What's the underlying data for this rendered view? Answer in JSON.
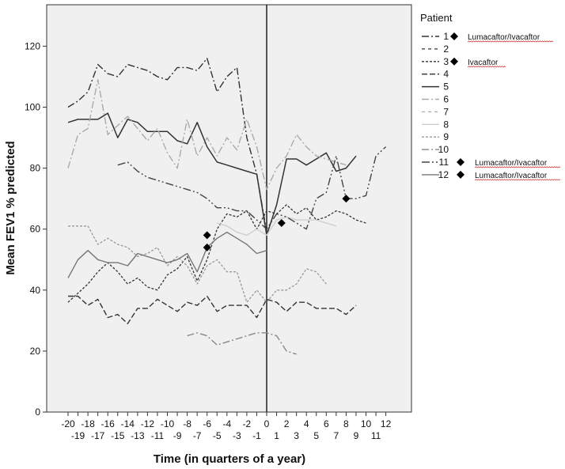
{
  "chart_data": {
    "type": "line",
    "title": "",
    "xlabel": "Time (in quarters of a year)",
    "ylabel": "Mean FEV1 % predicted",
    "xlim": [
      -21,
      13
    ],
    "ylim": [
      0,
      135
    ],
    "yticks": [
      0,
      20,
      40,
      60,
      80,
      100,
      120
    ],
    "xticks_upper": [
      -20,
      -18,
      -16,
      -14,
      -12,
      -10,
      -8,
      -6,
      -4,
      -2,
      0,
      2,
      4,
      6,
      8,
      10,
      12
    ],
    "xticks_lower": [
      -19,
      -17,
      -15,
      -13,
      -11,
      -9,
      -7,
      -5,
      -3,
      -1,
      1,
      3,
      5,
      7,
      9,
      11
    ],
    "reference_line_x": 0,
    "legend_title": "Patient",
    "annotations": [
      {
        "x": -6,
        "y": 58,
        "label": "diamond"
      },
      {
        "x": -6,
        "y": 54,
        "label": "diamond"
      },
      {
        "x": 1.5,
        "y": 62,
        "label": "diamond"
      },
      {
        "x": 8,
        "y": 70,
        "label": "diamond"
      }
    ],
    "series": [
      {
        "name": "1",
        "note": "Lumacaftor/Ivacaftor",
        "marker": true,
        "color": "#333333",
        "dash": "9,3,2,3",
        "width": 1.4,
        "x": [
          -20,
          -19,
          -18,
          -17,
          -16,
          -15,
          -14,
          -13,
          -12,
          -11,
          -10,
          -9,
          -8,
          -7,
          -6,
          -5,
          -4,
          -3,
          -2,
          -1,
          0
        ],
        "y": [
          100,
          102,
          105,
          114,
          111,
          110,
          114,
          113,
          112,
          110,
          109,
          113,
          113,
          112,
          116,
          105,
          110,
          113,
          90,
          78,
          59
        ]
      },
      {
        "name": "2",
        "note": "",
        "marker": false,
        "color": "#333333",
        "dash": "4,4",
        "width": 1.2,
        "x": [],
        "y": []
      },
      {
        "name": "3",
        "note": "Ivacaftor",
        "marker": true,
        "color": "#333333",
        "dash": "3,2",
        "width": 1.3,
        "x": [
          -20,
          -19,
          -18,
          -17,
          -16,
          -15,
          -14,
          -13,
          -12,
          -11,
          -10,
          -9,
          -8,
          -7,
          -6,
          -5,
          -4,
          -3,
          -2,
          -1,
          0,
          1,
          2,
          3,
          4,
          5,
          6,
          7,
          8,
          9,
          10
        ],
        "y": [
          36,
          39,
          42,
          46,
          49,
          46,
          42,
          44,
          41,
          40,
          45,
          47,
          51,
          43,
          50,
          60,
          65,
          64,
          66,
          60,
          66,
          65,
          68,
          65,
          67,
          63,
          64,
          66,
          65,
          63,
          62
        ]
      },
      {
        "name": "4",
        "note": "",
        "marker": false,
        "color": "#333333",
        "dash": "7,3",
        "width": 1.4,
        "x": [
          -20,
          -19,
          -18,
          -17,
          -16,
          -15,
          -14,
          -13,
          -12,
          -11,
          -10,
          -9,
          -8,
          -7,
          -6,
          -5,
          -4,
          -3,
          -2,
          -1,
          0,
          1,
          2,
          3,
          4,
          5,
          6,
          7,
          8,
          9
        ],
        "y": [
          38,
          38,
          35,
          37,
          31,
          32,
          29,
          34,
          34,
          37,
          35,
          33,
          36,
          35,
          38,
          33,
          35,
          35,
          35,
          31,
          37,
          36,
          33,
          36,
          36,
          34,
          34,
          34,
          32,
          35
        ]
      },
      {
        "name": "5",
        "note": "",
        "marker": false,
        "color": "#333333",
        "dash": "",
        "width": 1.5,
        "x": [
          -20,
          -19,
          -18,
          -17,
          -16,
          -15,
          -14,
          -13,
          -12,
          -11,
          -10,
          -9,
          -8,
          -7,
          -6,
          -5,
          -4,
          -3,
          -2,
          -1,
          0,
          1,
          2,
          3,
          4,
          5,
          6,
          7,
          8,
          9
        ],
        "y": [
          95,
          96,
          96,
          96,
          98,
          90,
          96,
          95,
          92,
          92,
          92,
          89,
          88,
          95,
          87,
          82,
          81,
          80,
          79,
          78,
          58,
          68,
          83,
          83,
          81,
          83,
          85,
          79,
          80,
          84
        ]
      },
      {
        "name": "6",
        "note": "",
        "marker": false,
        "color": "#aaaaaa",
        "dash": "9,3,2,3",
        "width": 1.4,
        "x": [
          -20,
          -19,
          -18,
          -17,
          -16,
          -15,
          -14,
          -13,
          -12,
          -11,
          -10,
          -9,
          -8,
          -7,
          -6,
          -5,
          -4,
          -3,
          -2,
          -1,
          0,
          1,
          2,
          3,
          4,
          5,
          6,
          7,
          8
        ],
        "y": [
          80,
          91,
          93,
          109,
          91,
          94,
          97,
          93,
          89,
          93,
          85,
          80,
          96,
          84,
          90,
          84,
          90,
          86,
          96,
          87,
          73,
          80,
          84,
          91,
          87,
          84,
          83,
          82,
          81
        ]
      },
      {
        "name": "7",
        "note": "",
        "marker": false,
        "color": "#aaaaaa",
        "dash": "4,4",
        "width": 1.2,
        "x": [],
        "y": []
      },
      {
        "name": "8",
        "note": "",
        "marker": false,
        "color": "#cfcfcf",
        "dash": "",
        "width": 1.4,
        "x": [
          -5,
          -4,
          -3,
          -2,
          -1,
          0,
          1,
          2,
          3,
          4,
          5,
          6,
          7
        ],
        "y": [
          62,
          61,
          59,
          58,
          60,
          58,
          63,
          64,
          63,
          63,
          63,
          62,
          61
        ]
      },
      {
        "name": "9",
        "note": "",
        "marker": false,
        "color": "#999999",
        "dash": "3,2",
        "width": 1.3,
        "x": [
          -20,
          -19,
          -18,
          -17,
          -16,
          -15,
          -14,
          -13,
          -12,
          -11,
          -10,
          -9,
          -8,
          -7,
          -6,
          -5,
          -4,
          -3,
          -2,
          -1,
          0,
          1,
          2,
          3,
          4,
          5,
          6
        ],
        "y": [
          61,
          61,
          61,
          55,
          57,
          55,
          54,
          51,
          52,
          54,
          48,
          51,
          48,
          42,
          48,
          50,
          46,
          46,
          36,
          40,
          36,
          40,
          40,
          42,
          47,
          46,
          42
        ]
      },
      {
        "name": "10",
        "note": "",
        "marker": false,
        "color": "#888888",
        "dash": "9,3,2,3",
        "width": 1.4,
        "x": [
          -8,
          -7,
          -6,
          -5,
          -4,
          -3,
          -2,
          -1,
          0,
          1,
          2,
          3
        ],
        "y": [
          25,
          26,
          25,
          22,
          23,
          24,
          25,
          26,
          26,
          25,
          20,
          19
        ]
      },
      {
        "name": "11",
        "note": "Lumacaftor/Ivacaftor",
        "marker": true,
        "color": "#444444",
        "dash": "10,3,2,3,2,3",
        "width": 1.4,
        "x": [
          -15,
          -14,
          -13,
          -12,
          -11,
          -10,
          -9,
          -8,
          -7,
          -6,
          -5,
          -4,
          -3,
          -2,
          -1,
          0,
          1,
          2,
          3,
          4,
          5,
          6,
          7,
          8,
          9,
          10,
          11,
          12
        ],
        "y": [
          81,
          82,
          79,
          77,
          76,
          75,
          74,
          73,
          72,
          70,
          67,
          67,
          66,
          66,
          63,
          60,
          65,
          64,
          62,
          60,
          70,
          72,
          84,
          70,
          70,
          71,
          84,
          87
        ]
      },
      {
        "name": "12",
        "note": "Lumacaftor/Ivacaftor",
        "marker": true,
        "color": "#777777",
        "dash": "",
        "width": 1.4,
        "x": [
          -20,
          -19,
          -18,
          -17,
          -16,
          -15,
          -14,
          -13,
          -12,
          -11,
          -10,
          -9,
          -8,
          -7,
          -6,
          -5,
          -4,
          -3,
          -2,
          -1,
          0
        ],
        "y": [
          44,
          50,
          53,
          50,
          49,
          49,
          48,
          52,
          51,
          50,
          49,
          50,
          52,
          46,
          54,
          57,
          59,
          57,
          55,
          52,
          53
        ]
      }
    ]
  }
}
